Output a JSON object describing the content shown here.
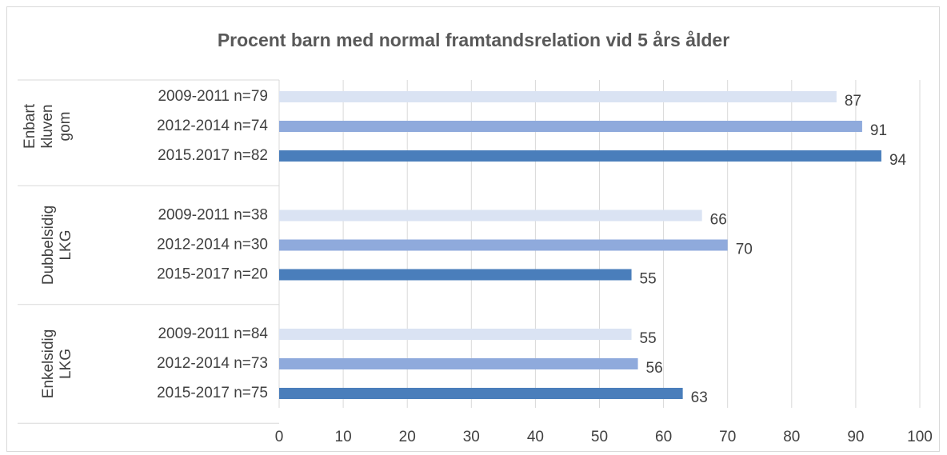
{
  "chart_data": {
    "type": "bar",
    "orientation": "horizontal",
    "title": "Procent barn med normal framtandsrelation vid 5 års ålder",
    "colors": [
      "#dae3f3",
      "#8faadc",
      "#4a7ebb"
    ],
    "groups": [
      {
        "name": "Enbart kluven gom",
        "categories": [
          "2009-2011 n=79",
          "2012-2014 n=74",
          "2015.2017 n=82"
        ],
        "values": [
          87,
          91,
          94
        ]
      },
      {
        "name": "Dubbelsidig LKG",
        "categories": [
          "2009-2011 n=38",
          "2012-2014 n=30",
          "2015-2017 n=20"
        ],
        "values": [
          66,
          70,
          55
        ]
      },
      {
        "name": "Enkelsidig LKG",
        "categories": [
          "2009-2011 n=84",
          "2012-2014 n=73",
          "2015-2017 n=75"
        ],
        "values": [
          55,
          56,
          63
        ]
      }
    ],
    "xlim": [
      0,
      100
    ],
    "xticks": [
      0,
      10,
      20,
      30,
      40,
      50,
      60,
      70,
      80,
      90,
      100
    ],
    "grid": true
  }
}
